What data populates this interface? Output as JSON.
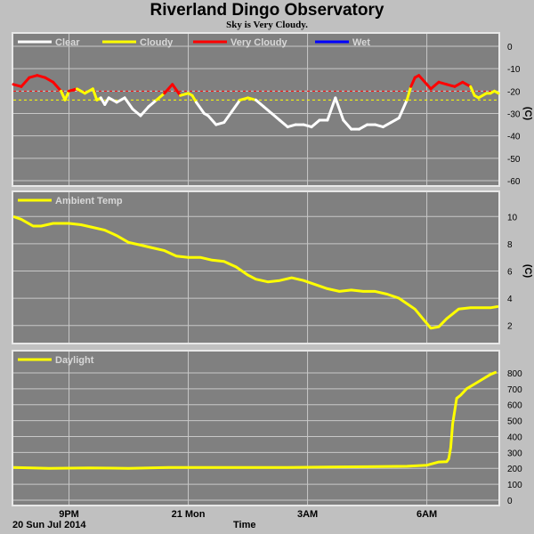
{
  "title": "Riverland Dingo Observatory",
  "subtitle": "Sky is Very Cloudy.",
  "date_label": "20 Sun Jul 2014",
  "xlabel": "Time",
  "colors": {
    "clear": "#ffffff",
    "cloudy": "#ffff00",
    "very_cloudy": "#ff0000",
    "wet": "#0000ff",
    "panel_bg": "#808080",
    "grid": "#c8c8c8"
  },
  "x_ticks": [
    "9PM",
    "21 Mon",
    "3AM",
    "6AM"
  ],
  "chart_data": [
    {
      "type": "line",
      "name": "sky",
      "unit": "(C)",
      "ylim": [
        -60,
        0
      ],
      "yticks": [
        0,
        -10,
        -20,
        -30,
        -40,
        -50,
        -60
      ],
      "thresholds": [
        {
          "value": -20,
          "color": "#ff0000"
        },
        {
          "value": -24,
          "color": "#ffff00"
        }
      ],
      "legend": [
        {
          "label": "Clear",
          "color": "#ffffff"
        },
        {
          "label": "Cloudy",
          "color": "#ffff00"
        },
        {
          "label": "Very Cloudy",
          "color": "#ff0000"
        },
        {
          "label": "Wet",
          "color": "#0000ff"
        }
      ],
      "x_hours": [
        19.6,
        19.8,
        20.0,
        20.2,
        20.4,
        20.6,
        20.8,
        20.9,
        21.0,
        21.2,
        21.4,
        21.6,
        21.7,
        21.8,
        21.9,
        22.0,
        22.2,
        22.4,
        22.6,
        22.8,
        23.0,
        23.2,
        23.4,
        23.6,
        23.8,
        24.0,
        24.1,
        24.2,
        24.4,
        24.5,
        24.7,
        24.9,
        25.1,
        25.3,
        25.5,
        25.7,
        25.9,
        26.1,
        26.3,
        26.5,
        26.7,
        26.9,
        27.1,
        27.3,
        27.5,
        27.7,
        27.9,
        28.1,
        28.3,
        28.5,
        28.7,
        28.9,
        29.1,
        29.3,
        29.5,
        29.6,
        29.7,
        29.8,
        30.0,
        30.1,
        30.3,
        30.5,
        30.7,
        30.9,
        31.1,
        31.2,
        31.3,
        31.5,
        31.6,
        31.7,
        31.8
      ],
      "values": [
        -17,
        -18,
        -14,
        -13,
        -14,
        -16,
        -20,
        -24,
        -20,
        -19,
        -21,
        -19,
        -24,
        -23,
        -26,
        -23,
        -25,
        -23,
        -28,
        -31,
        -27,
        -24,
        -21,
        -17,
        -22,
        -21,
        -22,
        -25,
        -30,
        -31,
        -35,
        -34,
        -29,
        -24,
        -23,
        -24,
        -27,
        -30,
        -33,
        -36,
        -35,
        -35,
        -36,
        -33,
        -33,
        -23,
        -33,
        -37,
        -37,
        -35,
        -35,
        -36,
        -34,
        -32,
        -24,
        -18,
        -14,
        -13,
        -17,
        -19,
        -16,
        -17,
        -18,
        -16,
        -18,
        -22,
        -23,
        -21,
        -21,
        -20,
        -21
      ]
    },
    {
      "type": "line",
      "name": "Ambient Temp",
      "unit": "(C)",
      "ylim": [
        1,
        11
      ],
      "yticks": [
        2,
        4,
        6,
        8,
        10
      ],
      "legend": [
        {
          "label": "Ambient Temp",
          "color": "#ffff00"
        }
      ],
      "x_hours": [
        19.6,
        19.8,
        20.1,
        20.3,
        20.6,
        21.0,
        21.3,
        21.6,
        21.9,
        22.2,
        22.5,
        22.8,
        23.1,
        23.4,
        23.7,
        24.0,
        24.3,
        24.6,
        24.9,
        25.2,
        25.5,
        25.7,
        26.0,
        26.3,
        26.6,
        26.9,
        27.2,
        27.5,
        27.8,
        28.1,
        28.4,
        28.7,
        29.0,
        29.3,
        29.5,
        29.7,
        29.9,
        30.1,
        30.3,
        30.5,
        30.8,
        31.1,
        31.4,
        31.6,
        31.8
      ],
      "values": [
        10.0,
        9.8,
        9.3,
        9.3,
        9.5,
        9.5,
        9.4,
        9.2,
        9.0,
        8.6,
        8.1,
        7.9,
        7.7,
        7.5,
        7.1,
        7.0,
        7.0,
        6.8,
        6.7,
        6.3,
        5.7,
        5.4,
        5.2,
        5.3,
        5.5,
        5.3,
        5.0,
        4.7,
        4.5,
        4.6,
        4.5,
        4.5,
        4.3,
        4.0,
        3.6,
        3.2,
        2.5,
        1.8,
        1.9,
        2.5,
        3.2,
        3.3,
        3.3,
        3.3,
        3.4
      ]
    },
    {
      "type": "line",
      "name": "Daylight",
      "ylim": [
        0,
        850
      ],
      "yticks": [
        0,
        100,
        200,
        300,
        400,
        500,
        600,
        700,
        800
      ],
      "legend": [
        {
          "label": "Daylight",
          "color": "#ffff00"
        }
      ],
      "x_hours": [
        19.6,
        20.5,
        21.5,
        22.5,
        23.5,
        24.5,
        25.5,
        26.5,
        27.5,
        28.5,
        29.5,
        30.0,
        30.3,
        30.5,
        30.55,
        30.6,
        30.65,
        30.75,
        30.85,
        31.0,
        31.2,
        31.4,
        31.6,
        31.75
      ],
      "values": [
        205,
        200,
        203,
        200,
        205,
        205,
        205,
        205,
        208,
        210,
        213,
        220,
        240,
        242,
        260,
        330,
        480,
        640,
        660,
        700,
        730,
        760,
        790,
        805
      ]
    }
  ]
}
